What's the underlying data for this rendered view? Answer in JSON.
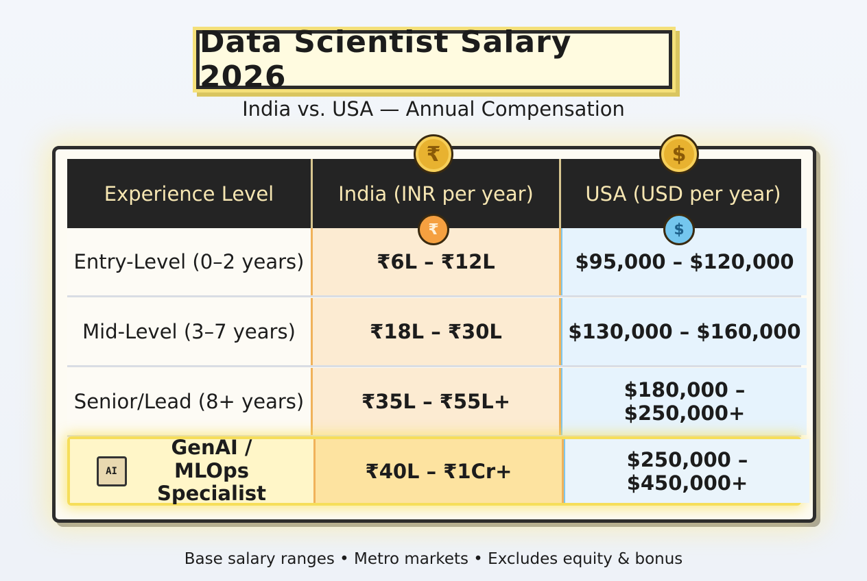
{
  "header": {
    "title": "Data Scientist Salary 2026",
    "subtitle": "India vs. USA — Annual Compensation"
  },
  "icons": {
    "inr": "₹",
    "usd": "$",
    "chip": "AI"
  },
  "table": {
    "columns": [
      "Experience Level",
      "India (INR per year)",
      "USA (USD per year)"
    ],
    "rows": [
      [
        "Entry-Level (0–2 years)",
        "₹6L – ₹12L",
        "$95,000 – $120,000"
      ],
      [
        "Mid-Level (3–7 years)",
        "₹18L – ₹30L",
        "$130,000 – $160,000"
      ],
      [
        "Senior/Lead (8+ years)",
        "₹35L – ₹55L+",
        "$180,000 – $250,000+"
      ],
      [
        "GenAI / MLOps Specialist",
        "₹40L – ₹1Cr+",
        "$250,000 – $450,000+"
      ]
    ]
  },
  "footer": "Base salary ranges • Metro markets • Excludes equity & bonus"
}
